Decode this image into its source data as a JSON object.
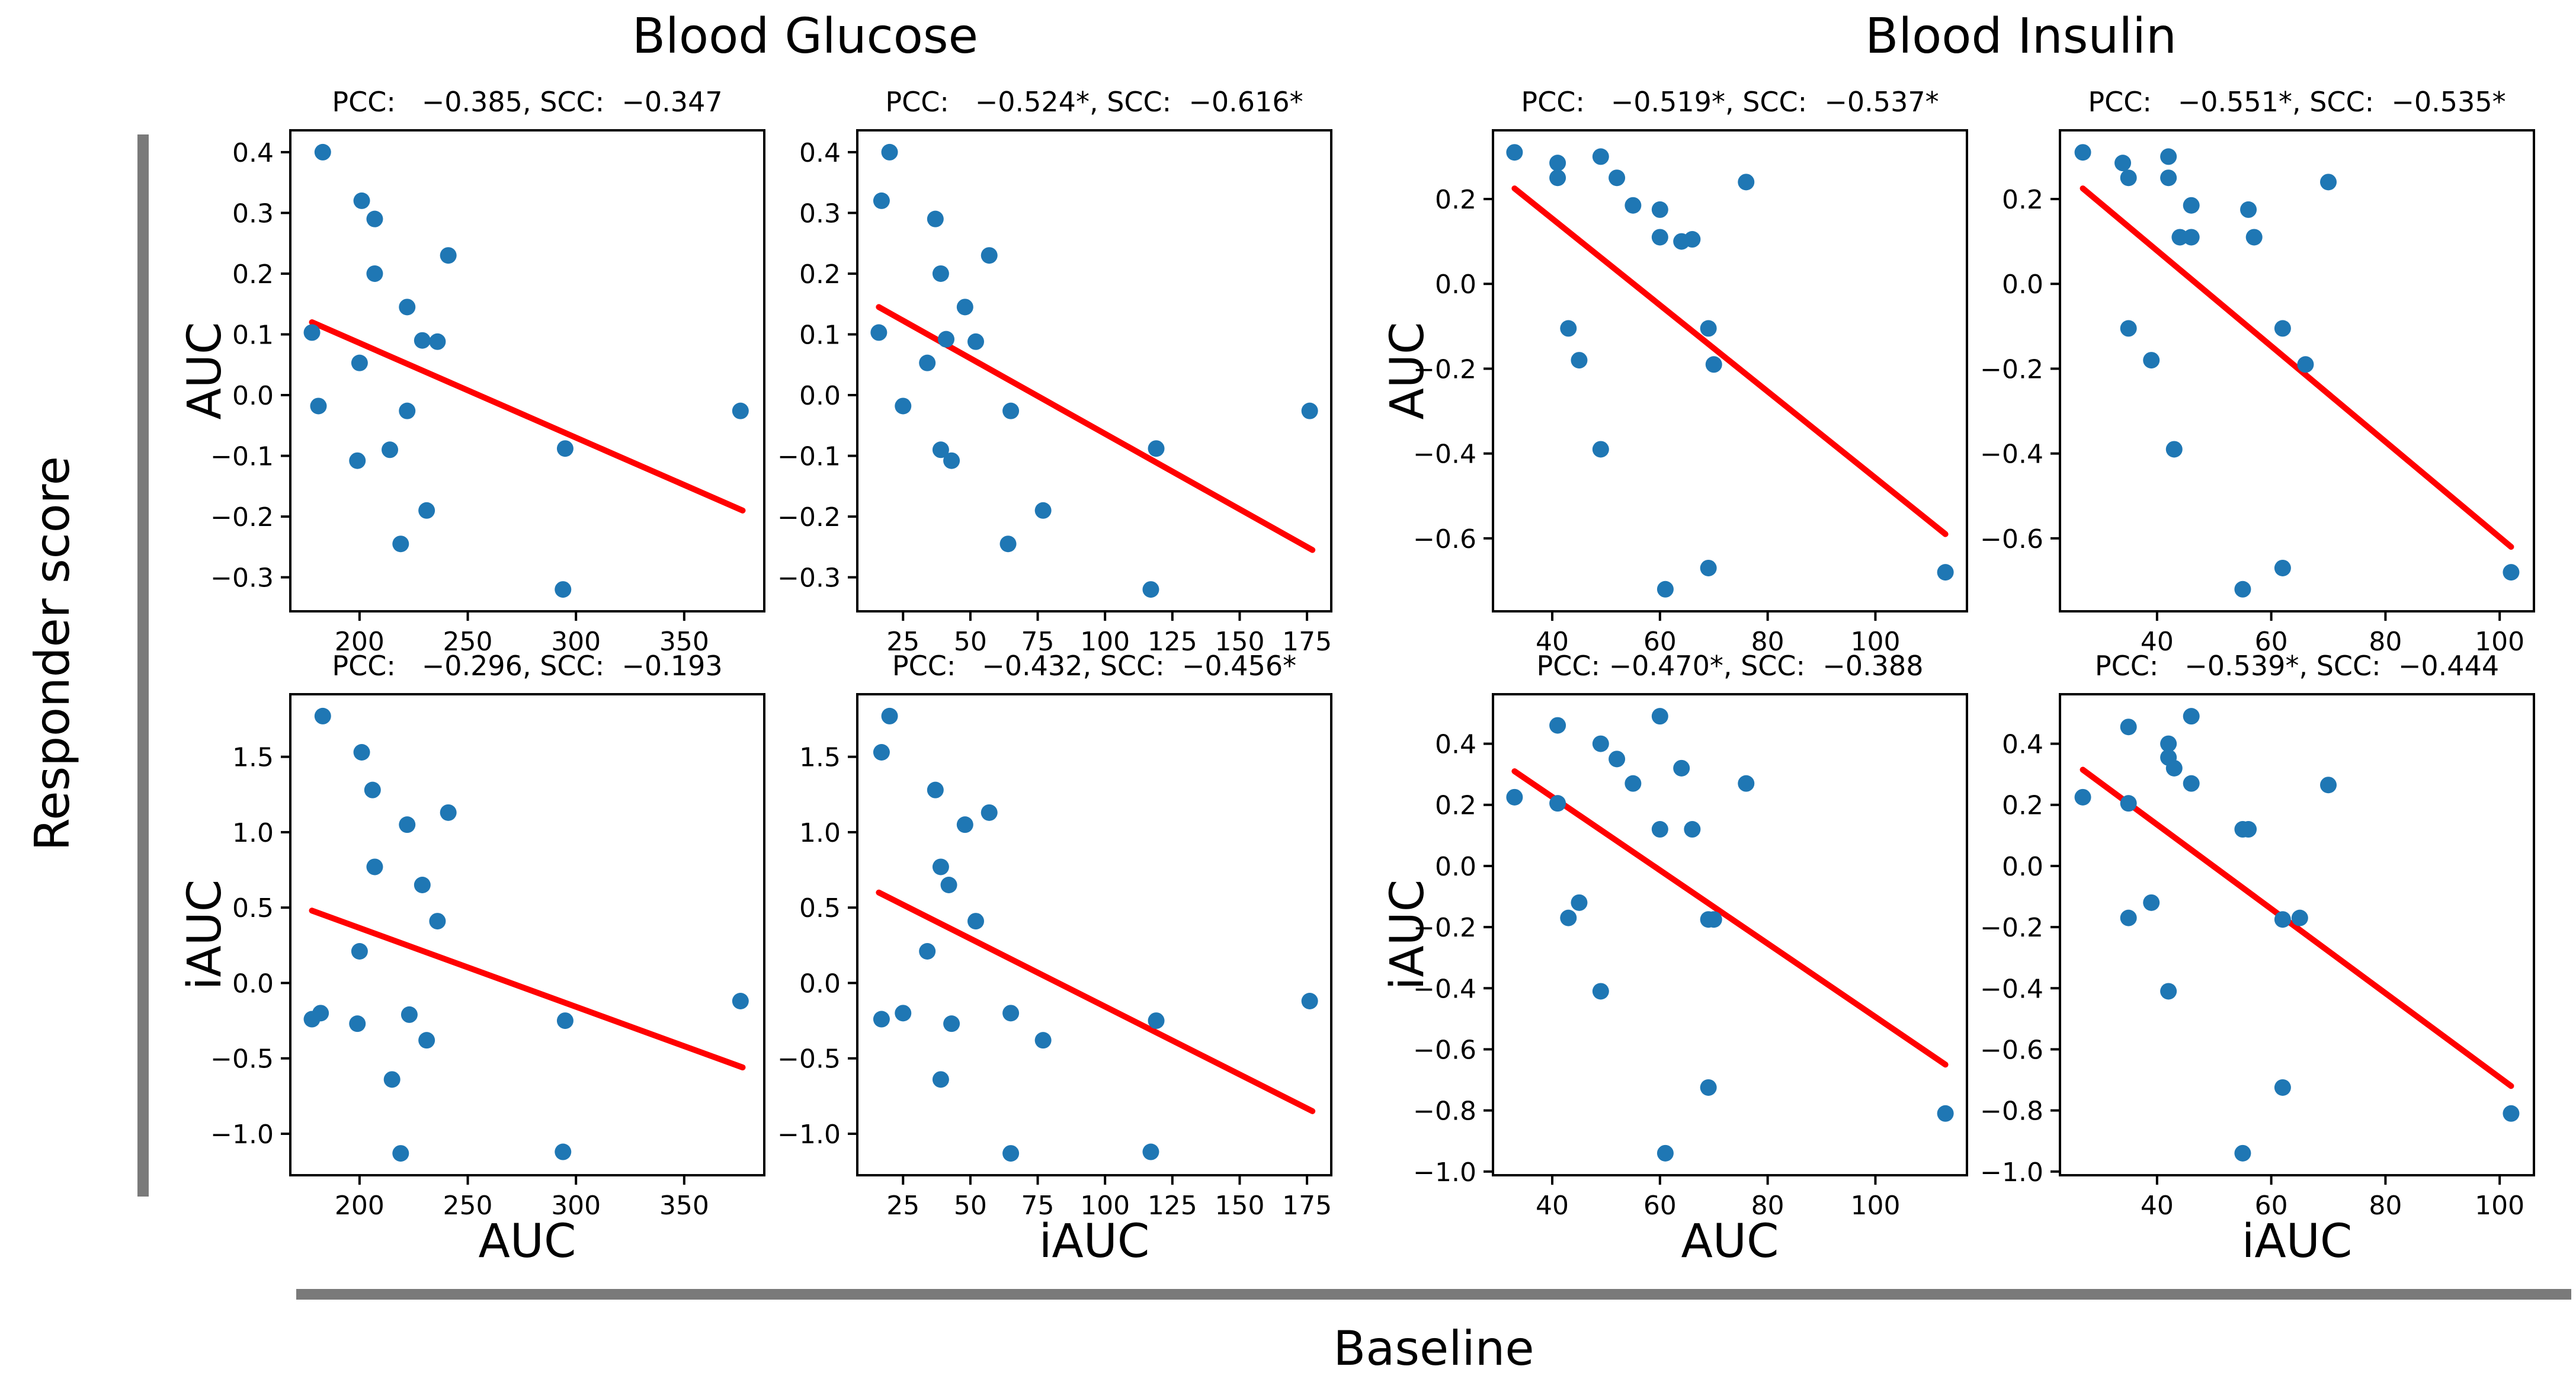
{
  "page": {
    "group_headers": [
      {
        "label": "Blood Glucose"
      },
      {
        "label": "Blood Insulin"
      }
    ],
    "left_axis_label": "Responder  score",
    "bottom_axis_label": "Baseline",
    "colors": {
      "point": "#1f77b4",
      "line": "#ff0000",
      "bar": "#7a7a7a"
    }
  },
  "chart_data": [
    {
      "type": "scatter",
      "title": "PCC:   −0.385, SCC:  −0.347",
      "group": "Blood Glucose",
      "row": "AUC",
      "ylabel": "AUC",
      "xlabel": "",
      "xlim": [
        168,
        387
      ],
      "ylim": [
        -0.356,
        0.436
      ],
      "xticks": [
        200,
        250,
        300,
        350
      ],
      "yticks": [
        0.4,
        0.3,
        0.2,
        0.1,
        0.0,
        -0.1,
        -0.2,
        -0.3
      ],
      "points": [
        [
          183,
          0.4
        ],
        [
          201,
          0.32
        ],
        [
          207,
          0.29
        ],
        [
          241,
          0.23
        ],
        [
          207,
          0.2
        ],
        [
          222,
          0.145
        ],
        [
          178,
          0.103
        ],
        [
          229,
          0.09
        ],
        [
          236,
          0.088
        ],
        [
          200,
          0.053
        ],
        [
          181,
          -0.018
        ],
        [
          222,
          -0.026
        ],
        [
          376,
          -0.026
        ],
        [
          295,
          -0.088
        ],
        [
          214,
          -0.09
        ],
        [
          199,
          -0.108
        ],
        [
          231,
          -0.19
        ],
        [
          219,
          -0.245
        ],
        [
          294,
          -0.32
        ]
      ],
      "trend_line": {
        "x": [
          178,
          377
        ],
        "y": [
          0.12,
          -0.19
        ]
      }
    },
    {
      "type": "scatter",
      "title": "PCC:   −0.524*, SCC:  −0.616*",
      "group": "Blood Glucose",
      "row": "AUC",
      "ylabel": "",
      "xlabel": "",
      "xlim": [
        8,
        184
      ],
      "ylim": [
        -0.356,
        0.436
      ],
      "xticks": [
        25,
        50,
        75,
        100,
        125,
        150,
        175
      ],
      "yticks": [
        0.4,
        0.3,
        0.2,
        0.1,
        0.0,
        -0.1,
        -0.2,
        -0.3
      ],
      "points": [
        [
          20,
          0.4
        ],
        [
          17,
          0.32
        ],
        [
          37,
          0.29
        ],
        [
          57,
          0.23
        ],
        [
          39,
          0.2
        ],
        [
          48,
          0.145
        ],
        [
          16,
          0.103
        ],
        [
          41,
          0.092
        ],
        [
          52,
          0.088
        ],
        [
          34,
          0.053
        ],
        [
          25,
          -0.018
        ],
        [
          65,
          -0.026
        ],
        [
          176,
          -0.026
        ],
        [
          119,
          -0.088
        ],
        [
          39,
          -0.09
        ],
        [
          43,
          -0.108
        ],
        [
          77,
          -0.19
        ],
        [
          64,
          -0.245
        ],
        [
          117,
          -0.32
        ]
      ],
      "trend_line": {
        "x": [
          16,
          177
        ],
        "y": [
          0.145,
          -0.255
        ]
      }
    },
    {
      "type": "scatter",
      "title": "PCC:   −0.519*, SCC:  −0.537*",
      "group": "Blood Insulin",
      "row": "AUC",
      "ylabel": "AUC",
      "xlabel": "",
      "xlim": [
        29,
        117
      ],
      "ylim": [
        -0.772,
        0.362
      ],
      "xticks": [
        40,
        60,
        80,
        100
      ],
      "yticks": [
        0.2,
        0.0,
        -0.2,
        -0.4,
        -0.6
      ],
      "points": [
        [
          33,
          0.31
        ],
        [
          49,
          0.3
        ],
        [
          41,
          0.285
        ],
        [
          41,
          0.25
        ],
        [
          52,
          0.25
        ],
        [
          76,
          0.24
        ],
        [
          55,
          0.185
        ],
        [
          60,
          0.175
        ],
        [
          60,
          0.11
        ],
        [
          66,
          0.105
        ],
        [
          64,
          0.1
        ],
        [
          43,
          -0.105
        ],
        [
          69,
          -0.105
        ],
        [
          45,
          -0.18
        ],
        [
          70,
          -0.19
        ],
        [
          49,
          -0.39
        ],
        [
          69,
          -0.67
        ],
        [
          61,
          -0.72
        ],
        [
          113,
          -0.68
        ]
      ],
      "trend_line": {
        "x": [
          33,
          113
        ],
        "y": [
          0.225,
          -0.59
        ]
      }
    },
    {
      "type": "scatter",
      "title": "PCC:   −0.551*, SCC:  −0.535*",
      "group": "Blood Insulin",
      "row": "AUC",
      "ylabel": "",
      "xlabel": "",
      "xlim": [
        23,
        106
      ],
      "ylim": [
        -0.772,
        0.362
      ],
      "xticks": [
        40,
        60,
        80,
        100
      ],
      "yticks": [
        0.2,
        0.0,
        -0.2,
        -0.4,
        -0.6
      ],
      "points": [
        [
          27,
          0.31
        ],
        [
          42,
          0.3
        ],
        [
          34,
          0.285
        ],
        [
          35,
          0.25
        ],
        [
          42,
          0.25
        ],
        [
          70,
          0.24
        ],
        [
          46,
          0.185
        ],
        [
          56,
          0.175
        ],
        [
          44,
          0.11
        ],
        [
          46,
          0.11
        ],
        [
          57,
          0.11
        ],
        [
          35,
          -0.105
        ],
        [
          62,
          -0.105
        ],
        [
          39,
          -0.18
        ],
        [
          66,
          -0.19
        ],
        [
          43,
          -0.39
        ],
        [
          62,
          -0.67
        ],
        [
          55,
          -0.72
        ],
        [
          102,
          -0.68
        ]
      ],
      "trend_line": {
        "x": [
          27,
          102
        ],
        "y": [
          0.225,
          -0.62
        ]
      }
    },
    {
      "type": "scatter",
      "title": "PCC:   −0.296, SCC:  −0.193",
      "group": "Blood Glucose",
      "row": "iAUC",
      "ylabel": "iAUC",
      "xlabel": "AUC",
      "xlim": [
        168,
        387
      ],
      "ylim": [
        -1.275,
        1.915
      ],
      "xticks": [
        200,
        250,
        300,
        350
      ],
      "yticks": [
        1.5,
        1.0,
        0.5,
        0.0,
        -0.5,
        -1.0
      ],
      "points": [
        [
          183,
          1.77
        ],
        [
          201,
          1.53
        ],
        [
          206,
          1.28
        ],
        [
          241,
          1.13
        ],
        [
          222,
          1.05
        ],
        [
          207,
          0.77
        ],
        [
          229,
          0.65
        ],
        [
          236,
          0.41
        ],
        [
          200,
          0.21
        ],
        [
          182,
          -0.2
        ],
        [
          178,
          -0.24
        ],
        [
          223,
          -0.21
        ],
        [
          199,
          -0.27
        ],
        [
          231,
          -0.38
        ],
        [
          215,
          -0.64
        ],
        [
          295,
          -0.25
        ],
        [
          376,
          -0.12
        ],
        [
          219,
          -1.13
        ],
        [
          294,
          -1.12
        ]
      ],
      "trend_line": {
        "x": [
          178,
          377
        ],
        "y": [
          0.48,
          -0.56
        ]
      }
    },
    {
      "type": "scatter",
      "title": "PCC:   −0.432, SCC:  −0.456*",
      "group": "Blood Glucose",
      "row": "iAUC",
      "ylabel": "",
      "xlabel": "iAUC",
      "xlim": [
        8,
        184
      ],
      "ylim": [
        -1.275,
        1.915
      ],
      "xticks": [
        25,
        50,
        75,
        100,
        125,
        150,
        175
      ],
      "yticks": [
        1.5,
        1.0,
        0.5,
        0.0,
        -0.5,
        -1.0
      ],
      "points": [
        [
          20,
          1.77
        ],
        [
          17,
          1.53
        ],
        [
          37,
          1.28
        ],
        [
          57,
          1.13
        ],
        [
          48,
          1.05
        ],
        [
          39,
          0.77
        ],
        [
          42,
          0.65
        ],
        [
          52,
          0.41
        ],
        [
          34,
          0.21
        ],
        [
          25,
          -0.2
        ],
        [
          17,
          -0.24
        ],
        [
          65,
          -0.2
        ],
        [
          43,
          -0.27
        ],
        [
          77,
          -0.38
        ],
        [
          39,
          -0.64
        ],
        [
          119,
          -0.25
        ],
        [
          176,
          -0.12
        ],
        [
          65,
          -1.13
        ],
        [
          117,
          -1.12
        ]
      ],
      "trend_line": {
        "x": [
          16,
          177
        ],
        "y": [
          0.6,
          -0.85
        ]
      }
    },
    {
      "type": "scatter",
      "title": "PCC: −0.470*, SCC:  −0.388",
      "group": "Blood Insulin",
      "row": "iAUC",
      "ylabel": "iAUC",
      "xlabel": "AUC",
      "xlim": [
        29,
        117
      ],
      "ylim": [
        -1.012,
        0.562
      ],
      "xticks": [
        40,
        60,
        80,
        100
      ],
      "yticks": [
        0.4,
        0.2,
        0.0,
        -0.2,
        -0.4,
        -0.6,
        -0.8,
        -1.0
      ],
      "points": [
        [
          60,
          0.49
        ],
        [
          41,
          0.46
        ],
        [
          49,
          0.4
        ],
        [
          52,
          0.35
        ],
        [
          64,
          0.32
        ],
        [
          55,
          0.27
        ],
        [
          76,
          0.27
        ],
        [
          33,
          0.225
        ],
        [
          41,
          0.205
        ],
        [
          60,
          0.12
        ],
        [
          66,
          0.12
        ],
        [
          45,
          -0.12
        ],
        [
          43,
          -0.17
        ],
        [
          69,
          -0.175
        ],
        [
          70,
          -0.175
        ],
        [
          49,
          -0.41
        ],
        [
          69,
          -0.725
        ],
        [
          61,
          -0.94
        ],
        [
          113,
          -0.81
        ]
      ],
      "trend_line": {
        "x": [
          33,
          113
        ],
        "y": [
          0.31,
          -0.65
        ]
      }
    },
    {
      "type": "scatter",
      "title": "PCC:   −0.539*, SCC:  −0.444",
      "group": "Blood Insulin",
      "row": "iAUC",
      "ylabel": "",
      "xlabel": "iAUC",
      "xlim": [
        23,
        106
      ],
      "ylim": [
        -1.012,
        0.562
      ],
      "xticks": [
        40,
        60,
        80,
        100
      ],
      "yticks": [
        0.4,
        0.2,
        0.0,
        -0.2,
        -0.4,
        -0.6,
        -0.8,
        -1.0
      ],
      "points": [
        [
          46,
          0.49
        ],
        [
          35,
          0.455
        ],
        [
          42,
          0.4
        ],
        [
          42,
          0.355
        ],
        [
          43,
          0.32
        ],
        [
          46,
          0.27
        ],
        [
          70,
          0.265
        ],
        [
          27,
          0.225
        ],
        [
          35,
          0.205
        ],
        [
          55,
          0.12
        ],
        [
          56,
          0.12
        ],
        [
          39,
          -0.12
        ],
        [
          35,
          -0.17
        ],
        [
          62,
          -0.175
        ],
        [
          65,
          -0.17
        ],
        [
          42,
          -0.41
        ],
        [
          62,
          -0.725
        ],
        [
          55,
          -0.94
        ],
        [
          102,
          -0.81
        ]
      ],
      "trend_line": {
        "x": [
          27,
          102
        ],
        "y": [
          0.315,
          -0.72
        ]
      }
    }
  ]
}
